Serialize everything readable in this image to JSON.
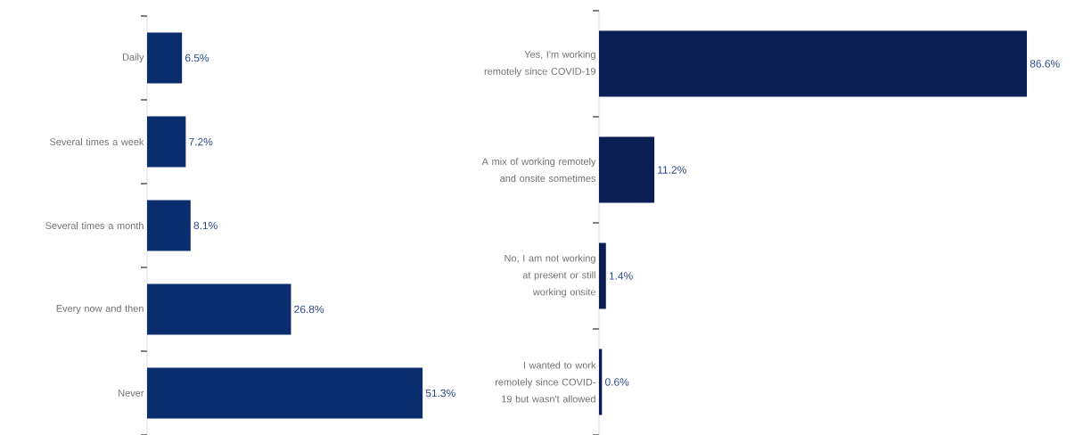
{
  "chart_data": [
    {
      "type": "bar",
      "orientation": "horizontal",
      "color": "#0a2d6e",
      "categories": [
        "Daily",
        "Several times a week",
        "Several times a month",
        "Every now and then",
        "Never"
      ],
      "values": [
        6.5,
        7.2,
        8.1,
        26.8,
        51.3
      ],
      "value_labels": [
        "6.5%",
        "7.2%",
        "8.1%",
        "26.8%",
        "51.3%"
      ]
    },
    {
      "type": "bar",
      "orientation": "horizontal",
      "color": "#0b1f55",
      "categories": [
        "Yes, I'm working remotely since COVID-19",
        "A mix of working remotely and onsite sometimes",
        "No, I am not working at present or still working onsite",
        "I wanted to work remotely since COVID-19 but wasn't allowed"
      ],
      "values": [
        86.6,
        11.2,
        1.4,
        0.6
      ],
      "value_labels": [
        "86.6%",
        "11.2%",
        "1.4%",
        "0.6%"
      ]
    }
  ]
}
